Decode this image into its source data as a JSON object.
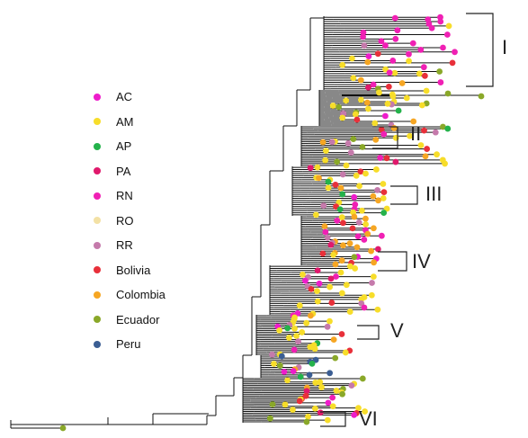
{
  "legend": [
    {
      "label": "AC",
      "color": "#ee1ccb"
    },
    {
      "label": "AM",
      "color": "#f7dd2a"
    },
    {
      "label": "AP",
      "color": "#24b24b"
    },
    {
      "label": "PA",
      "color": "#e0196c"
    },
    {
      "label": "RN",
      "color": "#f020b4"
    },
    {
      "label": "RO",
      "color": "#f3e1a5"
    },
    {
      "label": "RR",
      "color": "#c57aab"
    },
    {
      "label": "Bolivia",
      "color": "#e8303a"
    },
    {
      "label": "Colombia",
      "color": "#f6a623"
    },
    {
      "label": "Ecuador",
      "color": "#8aa829"
    },
    {
      "label": "Peru",
      "color": "#3b5e93"
    }
  ],
  "clades": [
    {
      "label": "I"
    },
    {
      "label": "II"
    },
    {
      "label": "III"
    },
    {
      "label": "IV"
    },
    {
      "label": "V"
    },
    {
      "label": "VI"
    }
  ]
}
